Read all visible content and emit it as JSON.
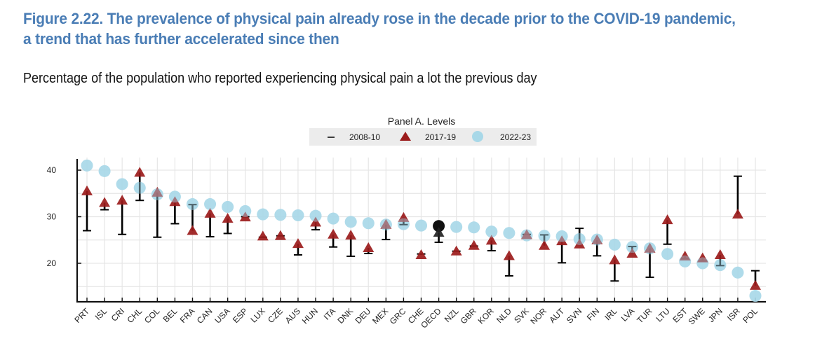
{
  "figure": {
    "title": "Figure 2.22. The prevalence of physical pain already rose in the decade prior to the COVID-19 pandemic, a trend that has further accelerated since then",
    "subtitle": "Percentage of the population who reported experiencing physical pain a lot the previous day"
  },
  "colors": {
    "title": "#4a7db5",
    "bar_2008_10": "#000000",
    "triangle_2017_19": "#9b1b1b",
    "circle_2022_23": "#a8d8e8",
    "oecd_marker": "#111111",
    "grid": "#e6e6e6",
    "legend_bg": "#ececec"
  },
  "chart_data": {
    "type": "scatter",
    "panel_title": "Panel A. Levels",
    "title": "Figure 2.22. The prevalence of physical pain already rose in the decade prior to the COVID-19 pandemic, a trend that has further accelerated since then",
    "subtitle": "Percentage of the population who reported experiencing physical pain a lot the previous day",
    "xlabel": "",
    "ylabel": "",
    "ylim": [
      12,
      42.5
    ],
    "yticks": [
      20,
      30,
      40
    ],
    "grid": true,
    "legend_placement": "top-center",
    "legend": [
      {
        "label": "2008-10",
        "marker": "dash"
      },
      {
        "label": "2017-19",
        "marker": "triangle"
      },
      {
        "label": "2022-23",
        "marker": "circle"
      }
    ],
    "categories": [
      "PRT",
      "ISL",
      "CRI",
      "CHL",
      "COL",
      "BEL",
      "FRA",
      "CAN",
      "USA",
      "ESP",
      "LUX",
      "CZE",
      "AUS",
      "HUN",
      "ITA",
      "DNK",
      "DEU",
      "MEX",
      "GRC",
      "CHE",
      "OECD",
      "NZL",
      "GBR",
      "KOR",
      "NLD",
      "SVK",
      "NOR",
      "AUT",
      "SVN",
      "FIN",
      "IRL",
      "LVA",
      "TUR",
      "LTU",
      "EST",
      "SWE",
      "JPN",
      "ISR",
      "POL"
    ],
    "highlight_category": "OECD",
    "series": [
      {
        "name": "2008-10",
        "values": [
          27.0,
          31.5,
          26.2,
          33.5,
          25.6,
          28.5,
          32.6,
          25.7,
          26.4,
          30.0,
          25.6,
          25.9,
          21.8,
          27.2,
          23.5,
          21.5,
          22.1,
          25.1,
          28.3,
          22.0,
          24.5,
          22.6,
          23.7,
          22.7,
          17.3,
          26.2,
          26.1,
          20.1,
          27.5,
          21.6,
          16.2,
          23.6,
          17.0,
          24.1,
          21.0,
          20.5,
          19.5,
          38.7,
          18.4
        ]
      },
      {
        "name": "2017-19",
        "values": [
          35.5,
          33.0,
          33.5,
          39.5,
          35.2,
          33.2,
          27.0,
          30.7,
          29.6,
          29.9,
          25.8,
          25.9,
          24.2,
          28.8,
          26.2,
          26.0,
          23.3,
          28.3,
          29.8,
          21.8,
          26.6,
          22.6,
          23.8,
          24.9,
          21.6,
          26.1,
          23.8,
          24.8,
          24.1,
          25.0,
          20.7,
          22.1,
          23.2,
          29.3,
          21.5,
          21.1,
          21.8,
          30.5,
          15.2
        ]
      },
      {
        "name": "2022-23",
        "values": [
          41.0,
          39.8,
          37.0,
          36.2,
          34.8,
          34.3,
          32.7,
          32.7,
          32.1,
          31.2,
          30.5,
          30.4,
          30.3,
          30.2,
          29.6,
          28.9,
          28.6,
          28.3,
          28.4,
          28.1,
          28.0,
          27.8,
          27.7,
          26.8,
          26.5,
          26.0,
          25.9,
          25.8,
          25.2,
          25.1,
          24.0,
          23.5,
          23.2,
          22.0,
          20.4,
          20.0,
          19.6,
          18.0,
          13.0
        ]
      }
    ]
  }
}
